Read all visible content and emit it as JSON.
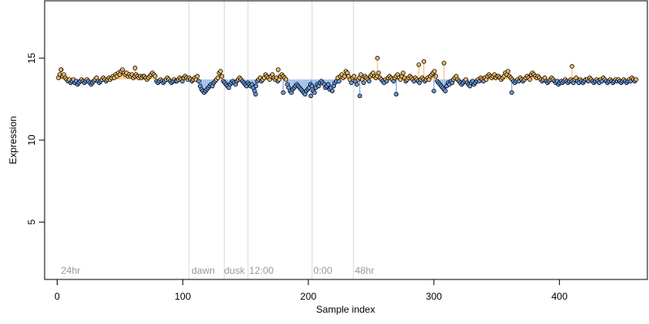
{
  "chart_data": {
    "type": "scatter",
    "title": "",
    "xlabel": "Sample index",
    "ylabel": "Expression",
    "xlim": [
      -10,
      470
    ],
    "ylim": [
      1.5,
      18.5
    ],
    "xticks": [
      0,
      100,
      200,
      300,
      400
    ],
    "yticks": [
      5,
      10,
      15
    ],
    "baseline": 13.7,
    "grid": false,
    "colors": {
      "above": "#f0b860",
      "below": "#6a9ae0",
      "point_stroke": "#000000",
      "divider": "#d8d8d8",
      "annotation": "#9a9a9a"
    },
    "dividers": [
      105,
      133,
      152,
      203,
      236
    ],
    "annotations": [
      {
        "x": 3,
        "text": "24hr"
      },
      {
        "x": 107,
        "text": "dawn"
      },
      {
        "x": 133,
        "text": "dusk"
      },
      {
        "x": 153,
        "text": "12:00"
      },
      {
        "x": 204,
        "text": "0:00"
      },
      {
        "x": 237,
        "text": "48hr"
      }
    ],
    "outliers": [
      {
        "x": 255,
        "y": 15.0
      },
      {
        "x": 292,
        "y": 14.8
      },
      {
        "x": 308,
        "y": 14.7
      },
      {
        "x": 410,
        "y": 14.5
      },
      {
        "x": 288,
        "y": 14.6
      },
      {
        "x": 176,
        "y": 14.3
      },
      {
        "x": 62,
        "y": 14.4
      },
      {
        "x": 3,
        "y": 14.3
      },
      {
        "x": 241,
        "y": 12.7
      },
      {
        "x": 202,
        "y": 12.7
      },
      {
        "x": 158,
        "y": 12.8
      },
      {
        "x": 270,
        "y": 12.8
      },
      {
        "x": 362,
        "y": 12.9
      },
      {
        "x": 300,
        "y": 13.0
      },
      {
        "x": 180,
        "y": 12.9
      }
    ],
    "series": [
      {
        "x_start": 1,
        "x_end": 461,
        "y": [
          13.8,
          14.0,
          14.3,
          13.9,
          14.0,
          13.8,
          13.7,
          13.6,
          13.7,
          13.5,
          13.6,
          13.7,
          13.5,
          13.6,
          13.4,
          13.5,
          13.6,
          13.7,
          13.6,
          13.5,
          13.6,
          13.7,
          13.6,
          13.5,
          13.4,
          13.5,
          13.6,
          13.7,
          13.8,
          13.6,
          13.5,
          13.6,
          13.7,
          13.8,
          13.7,
          13.6,
          13.7,
          13.8,
          13.7,
          13.8,
          13.9,
          13.8,
          14.0,
          13.9,
          14.1,
          14.0,
          14.2,
          14.3,
          14.1,
          14.0,
          14.1,
          13.9,
          14.0,
          13.9,
          14.0,
          13.8,
          13.9,
          14.0,
          13.9,
          13.8,
          13.9,
          13.8,
          13.9,
          13.9,
          13.8,
          13.7,
          13.8,
          13.9,
          14.0,
          14.1,
          14.0,
          13.9,
          13.6,
          13.5,
          13.6,
          13.7,
          13.6,
          13.5,
          13.6,
          13.7,
          13.8,
          13.7,
          13.6,
          13.5,
          13.6,
          13.7,
          13.6,
          13.6,
          13.7,
          13.8,
          13.7,
          13.6,
          13.8,
          13.9,
          13.8,
          13.7,
          13.8,
          13.7,
          13.6,
          13.7,
          13.8,
          13.7,
          13.9,
          13.6,
          13.3,
          13.1,
          13.0,
          12.9,
          13.0,
          13.1,
          13.2,
          13.3,
          13.4,
          13.3,
          13.5,
          13.6,
          13.7,
          13.8,
          14.1,
          14.2,
          13.9,
          13.6,
          13.5,
          13.4,
          13.3,
          13.2,
          13.4,
          13.5,
          13.6,
          13.5,
          13.4,
          13.6,
          13.7,
          13.8,
          13.7,
          13.6,
          13.5,
          13.4,
          13.3,
          13.5,
          13.4,
          13.3,
          13.4,
          13.2,
          13.0,
          13.3,
          13.6,
          13.7,
          13.8,
          13.6,
          13.7,
          13.8,
          14.0,
          13.9,
          13.8,
          13.7,
          13.9,
          14.0,
          13.8,
          13.7,
          13.8,
          13.6,
          13.7,
          13.9,
          14.0,
          13.9,
          13.8,
          13.7,
          13.4,
          13.2,
          13.0,
          12.9,
          13.1,
          13.2,
          13.3,
          13.4,
          13.3,
          13.2,
          13.1,
          13.0,
          12.9,
          12.8,
          13.0,
          13.1,
          13.2,
          13.4,
          13.3,
          13.0,
          12.9,
          13.2,
          13.4,
          13.3,
          13.5,
          13.6,
          13.5,
          13.4,
          13.2,
          13.3,
          13.4,
          13.1,
          13.2,
          13.0,
          13.3,
          13.5,
          13.6,
          13.8,
          13.6,
          13.9,
          14.0,
          13.8,
          13.9,
          14.2,
          14.1,
          13.9,
          13.7,
          13.5,
          13.8,
          13.9,
          13.6,
          13.4,
          13.7,
          13.8,
          14.0,
          13.7,
          13.5,
          13.9,
          13.8,
          13.7,
          13.6,
          13.9,
          14.0,
          14.1,
          13.9,
          13.8,
          13.9,
          14.1,
          13.8,
          13.7,
          13.6,
          13.5,
          13.7,
          13.6,
          13.8,
          13.9,
          13.8,
          13.7,
          13.6,
          13.8,
          13.9,
          14.0,
          13.8,
          13.7,
          13.9,
          14.1,
          13.8,
          13.6,
          13.7,
          13.8,
          13.9,
          13.8,
          13.7,
          13.6,
          13.8,
          13.7,
          13.6,
          13.5,
          13.7,
          13.8,
          13.7,
          13.6,
          13.7,
          13.8,
          13.7,
          13.9,
          14.0,
          14.1,
          14.2,
          13.9,
          13.6,
          13.5,
          13.4,
          13.3,
          13.2,
          13.1,
          13.0,
          13.3,
          13.5,
          13.4,
          13.6,
          13.5,
          13.7,
          13.8,
          13.9,
          13.7,
          13.6,
          13.5,
          13.4,
          13.5,
          13.6,
          13.7,
          13.5,
          13.4,
          13.3,
          13.5,
          13.6,
          13.4,
          13.5,
          13.6,
          13.7,
          13.6,
          13.8,
          13.7,
          13.6,
          13.8,
          13.7,
          13.9,
          14.0,
          13.9,
          13.8,
          13.9,
          14.0,
          13.8,
          13.9,
          13.9,
          13.8,
          13.7,
          13.8,
          13.9,
          14.1,
          14.0,
          14.2,
          13.9,
          13.8,
          13.7,
          13.6,
          13.5,
          13.6,
          13.7,
          13.6,
          13.8,
          13.7,
          13.6,
          13.7,
          13.8,
          13.9,
          13.8,
          13.7,
          14.0,
          14.1,
          14.0,
          13.9,
          13.8,
          13.9,
          13.8,
          13.7,
          13.6,
          13.7,
          13.8,
          13.6,
          13.5,
          13.6,
          13.7,
          13.8,
          13.7,
          13.6,
          13.5,
          13.6,
          13.4,
          13.5,
          13.6,
          13.5,
          13.6,
          13.7,
          13.6,
          13.5,
          13.6,
          13.7,
          13.6,
          13.5,
          13.7,
          13.8,
          13.6,
          13.5,
          13.7,
          13.6,
          13.5,
          13.6,
          13.7,
          13.7,
          13.6,
          13.8,
          13.7,
          13.6,
          13.5,
          13.6,
          13.7,
          13.6,
          13.5,
          13.7,
          13.6,
          13.8,
          13.7,
          13.6,
          13.5,
          13.6,
          13.7,
          13.6,
          13.5,
          13.6,
          13.7,
          13.6,
          13.7,
          13.6,
          13.5,
          13.6,
          13.7,
          13.6,
          13.5,
          13.6,
          13.7,
          13.6,
          13.8,
          13.7,
          13.6,
          13.7
        ]
      }
    ]
  }
}
